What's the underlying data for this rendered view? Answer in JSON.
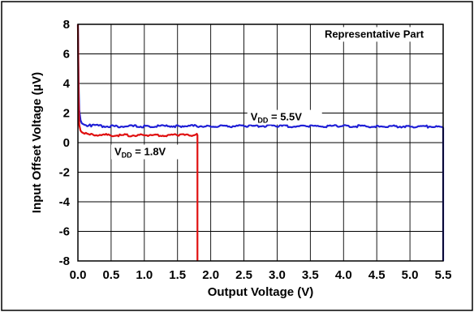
{
  "chart_data": {
    "type": "line",
    "xlabel": "Output Voltage (V)",
    "ylabel": "Input Offset Voltage (µV)",
    "xlim": [
      0.0,
      5.5
    ],
    "ylim": [
      -8,
      8
    ],
    "x_ticks": [
      "0.0",
      "0.5",
      "1.0",
      "1.5",
      "2.0",
      "2.5",
      "3.0",
      "3.5",
      "4.0",
      "4.5",
      "5.0",
      "5.5"
    ],
    "y_ticks": [
      "8",
      "6",
      "4",
      "2",
      "0",
      "-2",
      "-4",
      "-6",
      "-8"
    ],
    "grid": true,
    "corner_note": "Representative Part",
    "series": [
      {
        "name": "VDD = 5.5V",
        "label_main": "V",
        "label_sub": "DD",
        "label_value": " = 5.5V",
        "color": "#1f1fd6",
        "x": [
          0.0,
          0.01,
          0.02,
          0.04,
          0.06,
          0.1,
          0.2,
          0.5,
          1.0,
          1.5,
          2.0,
          2.5,
          3.0,
          3.5,
          4.0,
          4.5,
          5.0,
          5.45,
          5.49,
          5.5,
          5.5
        ],
        "y": [
          8,
          4,
          2.2,
          1.5,
          1.3,
          1.2,
          1.15,
          1.1,
          1.1,
          1.12,
          1.12,
          1.12,
          1.12,
          1.1,
          1.12,
          1.1,
          1.1,
          1.08,
          1.05,
          1.0,
          -8
        ]
      },
      {
        "name": "VDD = 1.8V",
        "label_main": "V",
        "label_sub": "DD",
        "label_value": " = 1.8V",
        "color": "#e01010",
        "x": [
          0.0,
          0.01,
          0.02,
          0.04,
          0.06,
          0.1,
          0.2,
          0.5,
          1.0,
          1.5,
          1.75,
          1.78,
          1.79,
          1.8,
          1.8
        ],
        "y": [
          8,
          3,
          1.2,
          0.8,
          0.7,
          0.6,
          0.55,
          0.5,
          0.5,
          0.5,
          0.5,
          0.55,
          0.6,
          0.5,
          -8
        ]
      }
    ]
  }
}
